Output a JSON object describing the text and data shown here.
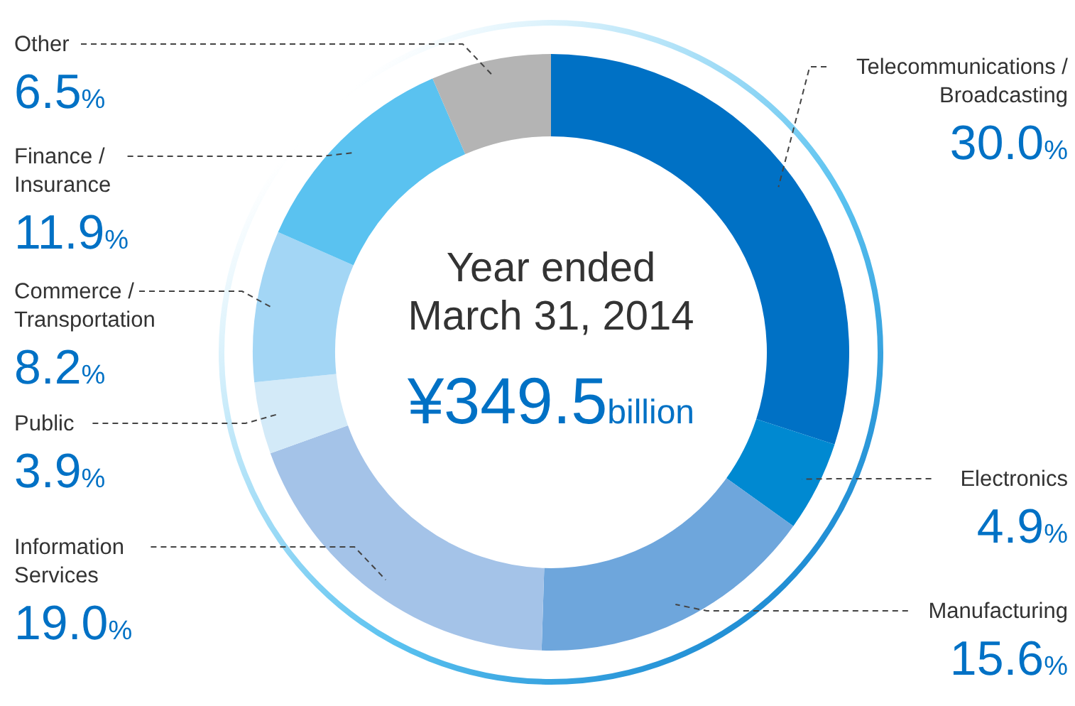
{
  "chart_data": {
    "type": "donut",
    "title": "Year ended\nMarch 31, 2014",
    "subtitle": "¥349.5billion",
    "categories": [
      "Telecommunications /\nBroadcasting",
      "Electronics",
      "Manufacturing",
      "Information\nServices",
      "Public",
      "Commerce /\nTransportation",
      "Finance /\nInsurance",
      "Other"
    ],
    "values": [
      30.0,
      4.9,
      15.6,
      19.0,
      3.9,
      8.2,
      11.9,
      6.5
    ],
    "value_labels": [
      "30.0%",
      "4.9%",
      "15.6%",
      "19.0%",
      "3.9%",
      "8.2%",
      "11.9%",
      "6.5%"
    ],
    "colors": [
      "#0071c5",
      "#0089d1",
      "#6ea6dc",
      "#a4c3e8",
      "#d3eaf8",
      "#a3d6f5",
      "#5ac2f0",
      "#b4b4b4"
    ]
  }
}
